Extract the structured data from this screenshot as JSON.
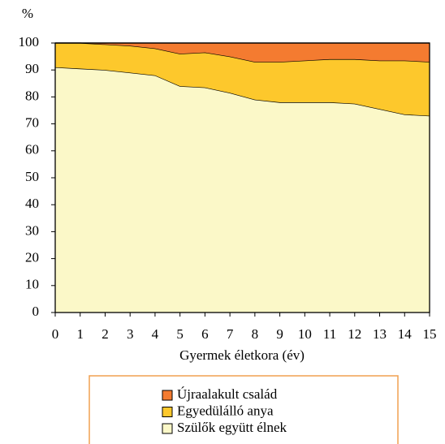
{
  "chart_data": {
    "type": "stacked_area",
    "y_label": "%",
    "x_label": "Gyermek életkora (év)",
    "x": [
      0,
      1,
      2,
      3,
      4,
      5,
      6,
      7,
      8,
      9,
      10,
      11,
      12,
      13,
      14,
      15
    ],
    "xlim": [
      0,
      15
    ],
    "xticks": [
      0,
      1,
      2,
      3,
      4,
      5,
      6,
      7,
      8,
      9,
      10,
      11,
      12,
      13,
      14,
      15
    ],
    "ylim": [
      0,
      100
    ],
    "yticks": [
      0,
      10,
      20,
      30,
      40,
      50,
      60,
      70,
      80,
      90,
      100
    ],
    "series": [
      {
        "name": "Szülők együtt élnek",
        "color": "#fbf8c8",
        "values": [
          91,
          90.5,
          90,
          89,
          88,
          84,
          83.5,
          81.5,
          79,
          78,
          78,
          78,
          77.5,
          75.5,
          73.5,
          73
        ]
      },
      {
        "name": "Egyedülálló anya",
        "color": "#fdc82c",
        "values": [
          9,
          9.5,
          9.5,
          10,
          10,
          12,
          13,
          13.5,
          14,
          15,
          15.5,
          16,
          16.5,
          18,
          20,
          20
        ]
      },
      {
        "name": "Újraalakult család",
        "color": "#f47b30",
        "values": [
          0,
          0,
          0.5,
          1,
          2,
          4,
          3.5,
          5,
          7,
          7,
          6.5,
          6,
          6,
          6.5,
          6.5,
          7
        ]
      }
    ]
  }
}
